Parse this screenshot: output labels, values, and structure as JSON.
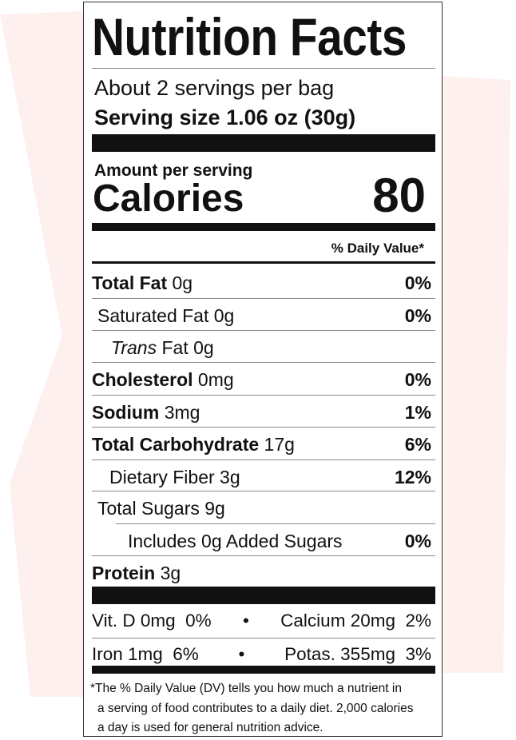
{
  "title": "Nutrition Facts",
  "servings_per_container": "About 2 servings per bag",
  "serving_size": "Serving size 1.06 oz (30g)",
  "amount_per_serving": "Amount per serving",
  "calories_label": "Calories",
  "calories_value": "80",
  "daily_value_header": "% Daily Value*",
  "nutrients": [
    {
      "name": "Total Fat",
      "amount": "0g",
      "dv": "0%"
    },
    {
      "name": "Saturated Fat 0g",
      "amount": "",
      "dv": "0%"
    },
    {
      "name_italic": "Trans",
      "name": "Fat 0g",
      "amount": "",
      "dv": ""
    },
    {
      "name": "Cholesterol",
      "amount": "0mg",
      "dv": "0%"
    },
    {
      "name": "Sodium",
      "amount": "3mg",
      "dv": "1%"
    },
    {
      "name": "Total Carbohydrate",
      "amount": "17g",
      "dv": "6%"
    },
    {
      "name": "Dietary Fiber 3g",
      "amount": "",
      "dv": "12%"
    },
    {
      "name": "Total Sugars 9g",
      "amount": "",
      "dv": ""
    },
    {
      "name": "Includes 0g Added Sugars",
      "amount": "",
      "dv": "0%"
    },
    {
      "name": "Protein",
      "amount": "3g",
      "dv": ""
    }
  ],
  "vitamins": {
    "row1_left": "Vit. D 0mg  0%",
    "row1_right": "Calcium 20mg  2%",
    "row2_left": "Iron 1mg  6%",
    "row2_right": "Potas. 355mg  3%",
    "separator": "•"
  },
  "footnote": {
    "line1": "*The % Daily Value (DV) tells you how much a nutrient in",
    "line2": "a serving of food contributes to a daily diet. 2,000 calories",
    "line3": "a day is used for general nutrition advice."
  },
  "colors": {
    "background_shape": "#fdf0ee",
    "ink": "#111111"
  }
}
